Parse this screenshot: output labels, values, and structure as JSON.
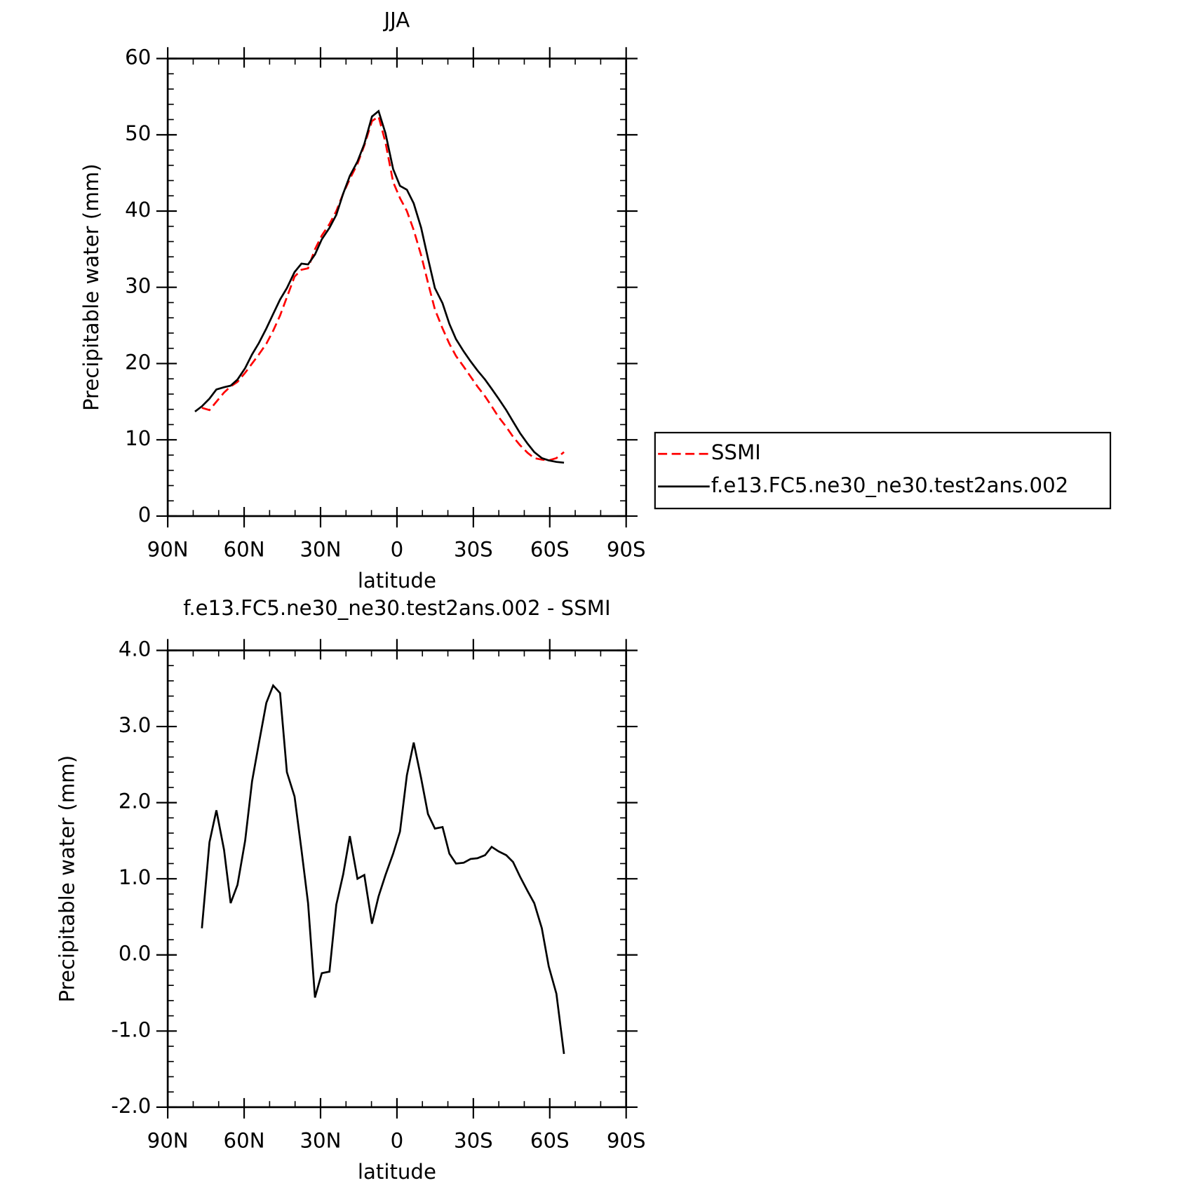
{
  "chart_data": [
    {
      "type": "line",
      "title": "JJA",
      "xlabel": "latitude",
      "ylabel": "Precipitable water (mm)",
      "x": [
        79.3,
        76.6,
        73.6,
        70.9,
        67.9,
        65.3,
        62.6,
        59.6,
        56.9,
        54.2,
        51.3,
        48.6,
        45.9,
        43.2,
        40.2,
        37.5,
        34.9,
        32.2,
        29.5,
        26.5,
        23.8,
        21.1,
        18.5,
        15.5,
        12.8,
        9.8,
        7.2,
        4.5,
        1.5,
        -1.2,
        -3.9,
        -6.6,
        -9.5,
        -12.2,
        -14.9,
        -17.9,
        -20.6,
        -23.2,
        -26.2,
        -28.9,
        -31.6,
        -34.6,
        -37.2,
        -39.9,
        -42.9,
        -45.6,
        -48.3,
        -51.3,
        -53.9,
        -56.9,
        -59.6,
        -62.6,
        -65.6
      ],
      "series": [
        {
          "name": "SSMI",
          "color": "#ff0000",
          "dash": true,
          "values": [
            null,
            14.2,
            13.9,
            15.0,
            16.2,
            17.0,
            17.6,
            18.8,
            20.0,
            21.2,
            22.6,
            24.3,
            26.3,
            28.7,
            31.4,
            32.3,
            32.5,
            35.0,
            36.8,
            38.3,
            40.0,
            42.3,
            44.2,
            46.2,
            48.6,
            51.8,
            52.4,
            49.0,
            43.8,
            41.7,
            40.0,
            37.5,
            34.2,
            30.6,
            27.1,
            24.6,
            22.6,
            21.0,
            19.6,
            18.3,
            17.0,
            15.7,
            14.4,
            13.0,
            11.7,
            10.4,
            9.3,
            8.3,
            7.6,
            7.4,
            7.3,
            7.6,
            8.4
          ]
        },
        {
          "name": "f.e13.FC5.ne30_ne30.test2ans.002",
          "color": "#000000",
          "dash": false,
          "values": [
            13.7,
            14.4,
            15.4,
            16.6,
            16.9,
            17.1,
            17.9,
            19.4,
            21.2,
            22.7,
            24.6,
            26.5,
            28.4,
            29.9,
            32.0,
            33.1,
            33.0,
            34.3,
            36.3,
            37.8,
            39.5,
            42.3,
            44.6,
            46.5,
            48.8,
            52.4,
            53.1,
            50.2,
            45.5,
            43.3,
            42.8,
            41.0,
            37.8,
            33.8,
            29.9,
            27.9,
            25.2,
            23.2,
            21.6,
            20.3,
            19.1,
            17.9,
            16.7,
            15.4,
            13.9,
            12.4,
            10.9,
            9.5,
            8.4,
            7.6,
            7.3,
            7.1,
            7.0
          ]
        }
      ],
      "xlim": [
        90,
        -90
      ],
      "xticks": [
        {
          "value": 90,
          "label": "90N"
        },
        {
          "value": 60,
          "label": "60N"
        },
        {
          "value": 30,
          "label": "30N"
        },
        0,
        {
          "value": -30,
          "label": "30S"
        },
        {
          "value": -60,
          "label": "60S"
        },
        {
          "value": -90,
          "label": "90S"
        }
      ],
      "ylim": [
        0,
        60
      ],
      "yticks": [
        0,
        10,
        20,
        30,
        40,
        50,
        60
      ],
      "legend": "right"
    },
    {
      "type": "line",
      "title": "f.e13.FC5.ne30_ne30.test2ans.002 - SSMI",
      "xlabel": "latitude",
      "ylabel": "Precipitable water (mm)",
      "x": [
        79.3,
        76.6,
        73.6,
        70.9,
        67.9,
        65.3,
        62.6,
        59.6,
        56.9,
        54.2,
        51.3,
        48.6,
        45.9,
        43.2,
        40.2,
        37.5,
        34.9,
        32.2,
        29.5,
        26.5,
        23.8,
        21.1,
        18.5,
        15.5,
        12.8,
        9.8,
        7.2,
        4.5,
        1.5,
        -1.2,
        -3.9,
        -6.6,
        -9.5,
        -12.2,
        -14.9,
        -17.9,
        -20.6,
        -23.2,
        -26.2,
        -28.9,
        -31.6,
        -34.6,
        -37.2,
        -39.9,
        -42.9,
        -45.6,
        -48.3,
        -51.3,
        -53.9,
        -56.9,
        -59.6,
        -62.6,
        -65.6
      ],
      "values": [
        null,
        0.35,
        1.48,
        1.9,
        1.38,
        0.68,
        0.92,
        1.5,
        2.28,
        2.78,
        3.31,
        3.54,
        3.44,
        2.4,
        2.08,
        1.38,
        0.68,
        -0.56,
        -0.24,
        -0.22,
        0.66,
        1.06,
        1.56,
        1.0,
        1.05,
        0.41,
        0.77,
        1.05,
        1.33,
        1.62,
        2.36,
        2.79,
        2.32,
        1.85,
        1.66,
        1.68,
        1.33,
        1.2,
        1.21,
        1.26,
        1.27,
        1.31,
        1.42,
        1.36,
        1.31,
        1.22,
        1.03,
        0.84,
        0.68,
        0.35,
        -0.15,
        -0.51,
        -1.3
      ],
      "color": "#000000",
      "xlim": [
        90,
        -90
      ],
      "xticks": [
        {
          "value": 90,
          "label": "90N"
        },
        {
          "value": 60,
          "label": "60N"
        },
        {
          "value": 30,
          "label": "30N"
        },
        0,
        {
          "value": -30,
          "label": "30S"
        },
        {
          "value": -60,
          "label": "60S"
        },
        {
          "value": -90,
          "label": "90S"
        }
      ],
      "ylim": [
        -2,
        4
      ],
      "yticks": [
        {
          "value": -2,
          "label": "-2.0"
        },
        {
          "value": -1,
          "label": "-1.0"
        },
        {
          "value": 0,
          "label": "0.0"
        },
        {
          "value": 1,
          "label": "1.0"
        },
        {
          "value": 2,
          "label": "2.0"
        },
        {
          "value": 3,
          "label": "3.0"
        },
        {
          "value": 4,
          "label": "4.0"
        }
      ]
    }
  ]
}
